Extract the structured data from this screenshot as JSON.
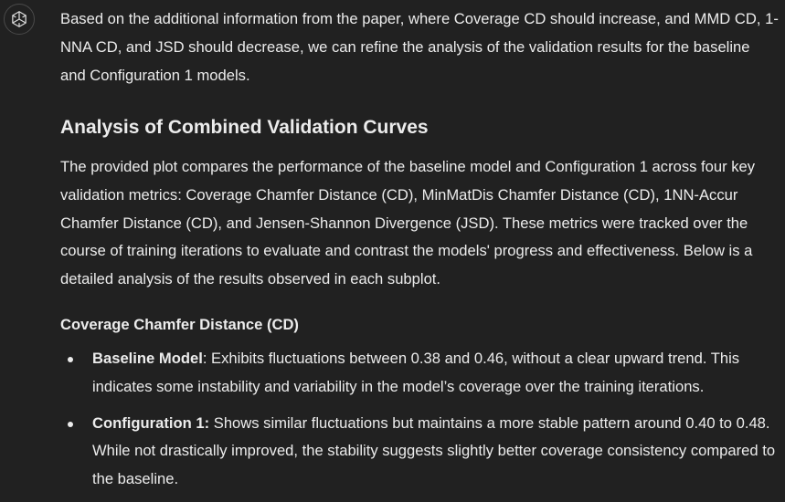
{
  "assistant": {
    "avatar_icon": "openai-logo-icon"
  },
  "message": {
    "intro": "Based on the additional information from the paper, where Coverage CD should increase, and MMD CD, 1-NNA CD, and JSD should decrease, we can refine the analysis of the validation results for the baseline and Configuration 1 models.",
    "heading": "Analysis of Combined Validation Curves",
    "analysis": "The provided plot compares the performance of the baseline model and Configuration 1 across four key validation metrics: Coverage Chamfer Distance (CD), MinMatDis Chamfer Distance (CD), 1NN-Accur Chamfer Distance (CD), and Jensen-Shannon Divergence (JSD). These metrics were tracked over the course of training iterations to evaluate and contrast the models' progress and effectiveness. Below is a detailed analysis of the results observed in each subplot.",
    "subheading": "Coverage Chamfer Distance (CD)",
    "bullets": [
      {
        "label": "Baseline Model",
        "sep": ":",
        "text": " Exhibits fluctuations between 0.38 and 0.46, without a clear upward trend. This indicates some instability and variability in the model’s coverage over the training iterations."
      },
      {
        "label": "Configuration 1",
        "sep": ":",
        "text": " Shows similar fluctuations but maintains a more stable pattern around 0.40 to 0.48. While not drastically improved, the stability suggests slightly better coverage consistency compared to the baseline."
      }
    ]
  }
}
